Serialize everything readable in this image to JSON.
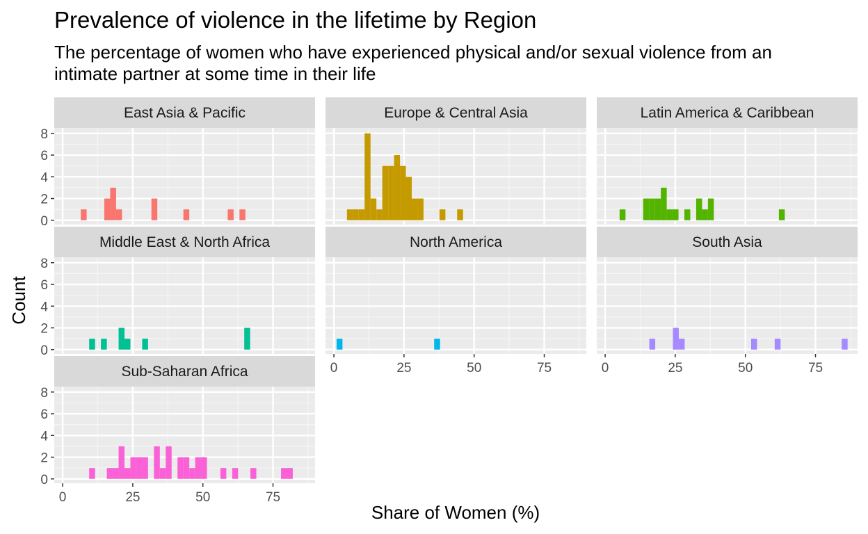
{
  "chart_data": {
    "type": "bar",
    "title": "Prevalence of violence in the lifetime by Region",
    "subtitle": "The percentage of women who have experienced physical and/or sexual violence from an intimate partner at some time in their life",
    "xlabel": "Share of Women (%)",
    "ylabel": "Count",
    "xlim": [
      -3,
      90
    ],
    "ylim": [
      -0.4,
      8.5
    ],
    "x_ticks": [
      0,
      25,
      50,
      75
    ],
    "y_ticks": [
      0,
      2,
      4,
      6,
      8
    ],
    "bin_width": 2.1,
    "grid": true,
    "layout": "facet grid 3 x 3",
    "facets": [
      {
        "name": "East Asia & Pacific",
        "color": "#F8766D",
        "bins": [
          [
            7.5,
            1
          ],
          [
            15.9,
            2
          ],
          [
            18.0,
            3
          ],
          [
            20.1,
            1
          ],
          [
            32.7,
            2
          ],
          [
            44.1,
            1
          ],
          [
            59.9,
            1
          ],
          [
            64.1,
            1
          ]
        ]
      },
      {
        "name": "Europe & Central Asia",
        "color": "#C49A00",
        "bins": [
          [
            5.7,
            1
          ],
          [
            7.8,
            1
          ],
          [
            9.9,
            1
          ],
          [
            12.0,
            8
          ],
          [
            14.1,
            2
          ],
          [
            16.2,
            1
          ],
          [
            18.3,
            5
          ],
          [
            20.4,
            5
          ],
          [
            22.5,
            6
          ],
          [
            24.6,
            5
          ],
          [
            26.7,
            4
          ],
          [
            28.8,
            2
          ],
          [
            30.9,
            2
          ],
          [
            38.7,
            1
          ],
          [
            45.0,
            1
          ]
        ]
      },
      {
        "name": "Latin America & Caribbean",
        "color": "#53B400",
        "bins": [
          [
            6.2,
            1
          ],
          [
            14.6,
            2
          ],
          [
            16.7,
            2
          ],
          [
            18.8,
            2
          ],
          [
            20.9,
            3
          ],
          [
            23.0,
            1
          ],
          [
            25.1,
            1
          ],
          [
            29.3,
            1
          ],
          [
            33.5,
            2
          ],
          [
            35.6,
            1
          ],
          [
            37.7,
            2
          ],
          [
            63.0,
            1
          ]
        ]
      },
      {
        "name": "Middle East & North Africa",
        "color": "#00C094",
        "bins": [
          [
            10.5,
            1
          ],
          [
            14.7,
            1
          ],
          [
            21.0,
            2
          ],
          [
            23.1,
            1
          ],
          [
            29.4,
            1
          ],
          [
            65.8,
            2
          ]
        ]
      },
      {
        "name": "North America",
        "color": "#00B6EB",
        "bins": [
          [
            2.0,
            1
          ],
          [
            36.8,
            1
          ]
        ]
      },
      {
        "name": "South Asia",
        "color": "#A58AFF",
        "bins": [
          [
            16.8,
            1
          ],
          [
            25.2,
            2
          ],
          [
            27.3,
            1
          ],
          [
            53.1,
            1
          ],
          [
            61.5,
            1
          ],
          [
            85.4,
            1
          ]
        ]
      },
      {
        "name": "Sub-Saharan Africa",
        "color": "#FB61D7",
        "bins": [
          [
            10.5,
            1
          ],
          [
            16.8,
            1
          ],
          [
            18.9,
            1
          ],
          [
            21.0,
            3
          ],
          [
            23.1,
            1
          ],
          [
            25.2,
            2
          ],
          [
            27.3,
            2
          ],
          [
            29.4,
            2
          ],
          [
            33.6,
            3
          ],
          [
            35.7,
            1
          ],
          [
            37.8,
            3
          ],
          [
            42.0,
            2
          ],
          [
            44.1,
            2
          ],
          [
            46.2,
            1
          ],
          [
            48.3,
            2
          ],
          [
            50.4,
            2
          ],
          [
            57.3,
            1
          ],
          [
            61.5,
            1
          ],
          [
            68.0,
            1
          ],
          [
            78.9,
            1
          ],
          [
            81.0,
            1
          ]
        ]
      }
    ]
  }
}
